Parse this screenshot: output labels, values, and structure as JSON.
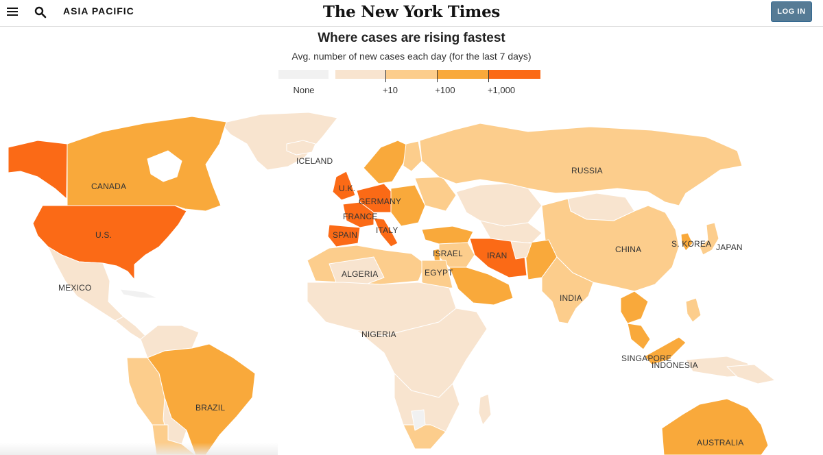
{
  "header": {
    "section_label": "ASIA PACIFIC",
    "masthead": "The New York Times",
    "login_label": "LOG IN",
    "icons": [
      "menu-icon",
      "search-icon"
    ]
  },
  "map": {
    "title": "Where cases are rising fastest",
    "subtitle": "Avg. number of new cases each day (for the last 7 days)",
    "legend": {
      "none_label": "None",
      "thresholds": [
        "+10",
        "+100",
        "+1,000"
      ],
      "colors": {
        "none": "#f1f1f1",
        "level1": "#f8e4cf",
        "level2": "#fccd8c",
        "level3": "#f9a93b",
        "level4": "#fb6a16"
      }
    },
    "labels": {
      "iceland": "ICELAND",
      "russia": "RUSSIA",
      "canada": "CANADA",
      "uk": "U.K.",
      "germany": "GERMANY",
      "france": "FRANCE",
      "italy": "ITALY",
      "spain": "SPAIN",
      "us": "U.S.",
      "israel": "ISRAEL",
      "iran": "IRAN",
      "china": "CHINA",
      "skorea": "S. KOREA",
      "japan": "JAPAN",
      "algeria": "ALGERIA",
      "egypt": "EGYPT",
      "mexico": "MEXICO",
      "india": "INDIA",
      "nigeria": "NIGERIA",
      "singapore": "SINGAPORE",
      "indonesia": "INDONESIA",
      "brazil": "BRAZIL",
      "australia": "AUSTRALIA"
    }
  }
}
